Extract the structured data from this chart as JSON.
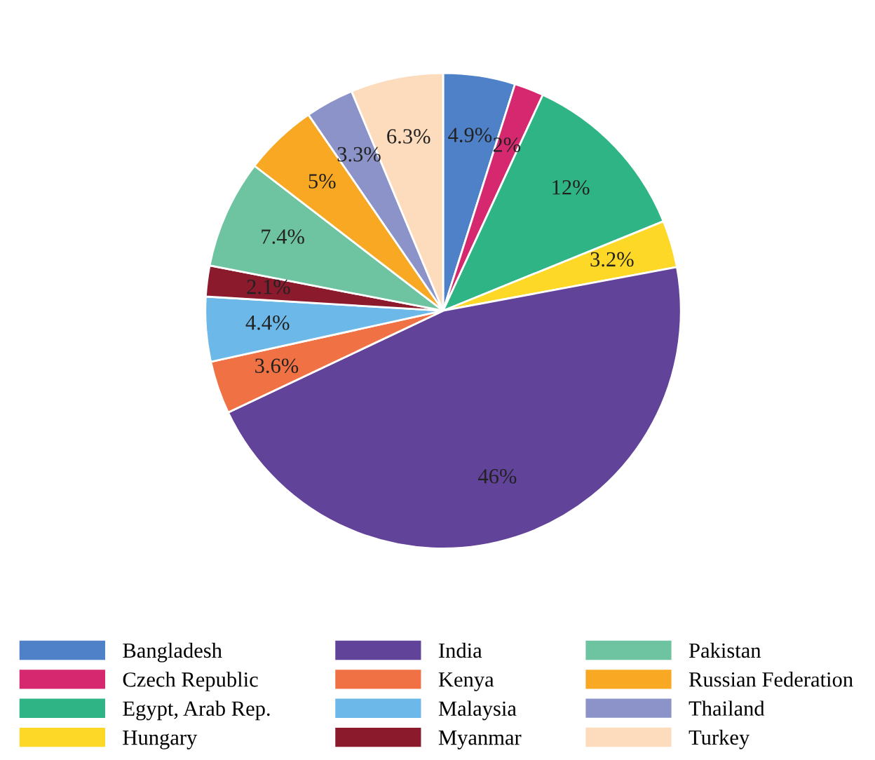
{
  "chart_data": {
    "type": "pie",
    "categories": [
      "Bangladesh",
      "Czech Republic",
      "Egypt, Arab Rep.",
      "Hungary",
      "India",
      "Kenya",
      "Malaysia",
      "Myanmar",
      "Pakistan",
      "Russian Federation",
      "Thailand",
      "Turkey"
    ],
    "values": [
      4.9,
      2,
      12,
      3.2,
      46,
      3.6,
      4.4,
      2.1,
      7.4,
      5,
      3.3,
      6.3
    ],
    "colors": [
      "#4e81c8",
      "#d6286e",
      "#2fb585",
      "#fdd826",
      "#62439a",
      "#f07143",
      "#6cb8e8",
      "#8b1a2c",
      "#6ec4a0",
      "#f8a823",
      "#8b93c8",
      "#fddbbd"
    ],
    "value_labels": [
      "4.9%",
      "2%",
      "12%",
      "3.2%",
      "46%",
      "3.6%",
      "4.4%",
      "2.1%",
      "7.4%",
      "5%",
      "3.3%",
      "6.3%"
    ],
    "legend": "bottom"
  }
}
